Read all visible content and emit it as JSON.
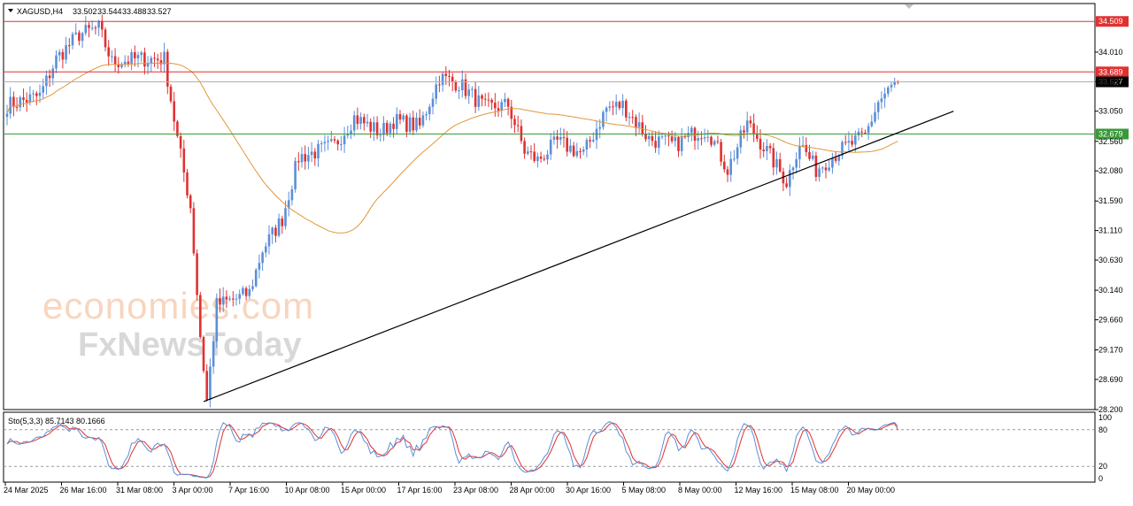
{
  "header": {
    "symbol": "XAGUSD,H4",
    "open": "33.502",
    "high": "33.544",
    "low": "33.488",
    "close": "33.527"
  },
  "watermark": {
    "line1": "economies.com",
    "line2": "FxNewsToday"
  },
  "colors": {
    "bull": "#5b8fd8",
    "bear": "#e03131",
    "ma": "#e3963c",
    "resistance": "#e03131",
    "support": "#3a9a3a",
    "price_line": "#b0b0b0",
    "trend": "#000000",
    "stoch_main": "#5b8fd8",
    "stoch_signal": "#e03131"
  },
  "chart_data": {
    "type": "candlestick",
    "symbol": "XAGUSD",
    "timeframe": "H4",
    "y_axis": {
      "range": [
        28.2,
        34.8
      ],
      "ticks": [
        "34.010",
        "33.530",
        "33.050",
        "32.560",
        "32.080",
        "31.590",
        "31.110",
        "30.630",
        "30.140",
        "29.660",
        "29.170",
        "28.690",
        "28.200"
      ]
    },
    "x_axis": {
      "labels": [
        "24 Mar 2025",
        "26 Mar 16:00",
        "31 Mar 08:00",
        "3 Apr 00:00",
        "7 Apr 16:00",
        "10 Apr 08:00",
        "15 Apr 00:00",
        "17 Apr 16:00",
        "23 Apr 08:00",
        "28 Apr 00:00",
        "30 Apr 16:00",
        "5 May 08:00",
        "8 May 00:00",
        "12 May 16:00",
        "15 May 08:00",
        "20 May 00:00"
      ]
    },
    "levels": [
      {
        "label": "34.509",
        "value": 34.509,
        "kind": "resistance"
      },
      {
        "label": "33.689",
        "value": 33.689,
        "kind": "resistance"
      },
      {
        "label": "33.527",
        "value": 33.527,
        "kind": "price"
      },
      {
        "label": "32.679",
        "value": 32.679,
        "kind": "support"
      }
    ],
    "trendline": {
      "from": {
        "bar": 60,
        "price": 28.33
      },
      "to": {
        "bar": 289,
        "price": 33.05
      }
    },
    "anchors": [
      [
        0,
        33.15
      ],
      [
        10,
        33.3
      ],
      [
        15,
        33.9
      ],
      [
        22,
        34.3
      ],
      [
        28,
        34.4
      ],
      [
        32,
        33.85
      ],
      [
        40,
        33.9
      ],
      [
        48,
        33.9
      ],
      [
        52,
        32.6
      ],
      [
        56,
        31.5
      ],
      [
        59,
        29.4
      ],
      [
        61,
        28.35
      ],
      [
        64,
        29.9
      ],
      [
        70,
        30.0
      ],
      [
        74,
        30.1
      ],
      [
        78,
        30.8
      ],
      [
        84,
        31.3
      ],
      [
        89,
        32.3
      ],
      [
        95,
        32.4
      ],
      [
        100,
        32.5
      ],
      [
        106,
        32.95
      ],
      [
        114,
        32.7
      ],
      [
        118,
        32.9
      ],
      [
        126,
        32.8
      ],
      [
        132,
        33.6
      ],
      [
        138,
        33.5
      ],
      [
        146,
        33.1
      ],
      [
        153,
        33.15
      ],
      [
        158,
        32.4
      ],
      [
        162,
        32.25
      ],
      [
        168,
        32.55
      ],
      [
        176,
        32.35
      ],
      [
        183,
        33.1
      ],
      [
        188,
        33.15
      ],
      [
        196,
        32.6
      ],
      [
        204,
        32.5
      ],
      [
        210,
        32.7
      ],
      [
        214,
        32.75
      ],
      [
        220,
        32.1
      ],
      [
        226,
        32.85
      ],
      [
        232,
        32.4
      ],
      [
        238,
        31.9
      ],
      [
        242,
        32.55
      ],
      [
        247,
        32.1
      ],
      [
        254,
        32.4
      ],
      [
        262,
        32.65
      ],
      [
        266,
        33.2
      ],
      [
        272,
        33.55
      ]
    ],
    "ma": {
      "period": 50,
      "type": "SMA"
    },
    "stochastic": {
      "label": "Sto(5,3,3) 85.7143 80.1666",
      "params": [
        5,
        3,
        3
      ],
      "main": 85.7143,
      "signal": 80.1666,
      "levels": [
        80,
        20
      ],
      "axis_ticks": [
        "100",
        "80",
        "20",
        "0"
      ]
    }
  }
}
